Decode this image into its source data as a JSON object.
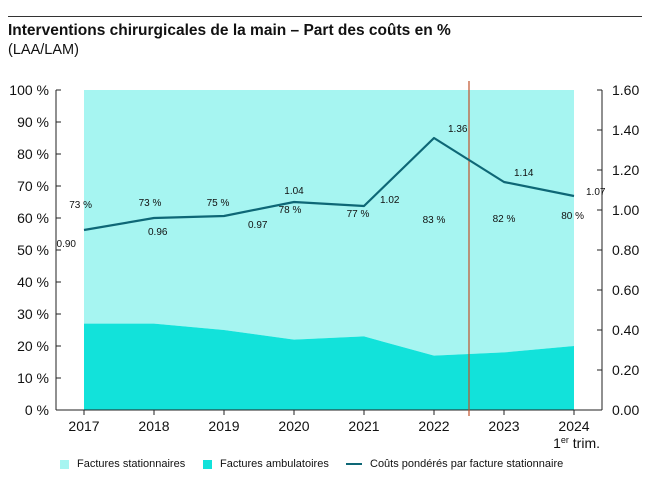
{
  "title": "Interventions chirurgicales de la main – Part des coûts en %",
  "subtitle": "(LAA/LAM)",
  "colors": {
    "stationnaire": "#a6f5f1",
    "ambulatoire": "#12e2da",
    "line": "#0e6776",
    "divider": "#c0522b"
  },
  "chart_data": {
    "type": "area",
    "x": [
      "2017",
      "2018",
      "2019",
      "2020",
      "2021",
      "2022",
      "2023",
      "2024"
    ],
    "x_note": "1er trim.",
    "ylim_left": [
      0,
      100
    ],
    "ylim_right": [
      0,
      1.6
    ],
    "yticks_left": [
      "0 %",
      "10 %",
      "20 %",
      "30 %",
      "40 %",
      "50 %",
      "60 %",
      "70 %",
      "80 %",
      "90 %",
      "100 %"
    ],
    "yticks_right": [
      "0.00",
      "0.20",
      "0.40",
      "0.60",
      "0.80",
      "1.00",
      "1.20",
      "1.40",
      "1.60"
    ],
    "series": [
      {
        "name": "Factures stationnaires",
        "axis": "left",
        "values": [
          73,
          73,
          75,
          78,
          77,
          83,
          82,
          80
        ],
        "labels": [
          "73 %",
          "73 %",
          "75 %",
          "78 %",
          "77 %",
          "83 %",
          "82 %",
          "80 %"
        ]
      },
      {
        "name": "Factures ambulatoires",
        "axis": "left",
        "values": [
          27,
          27,
          25,
          22,
          23,
          17,
          18,
          20
        ]
      },
      {
        "name": "Coûts pondérés par facture stationnaire",
        "axis": "right",
        "values": [
          0.9,
          0.96,
          0.97,
          1.04,
          1.02,
          1.36,
          1.14,
          1.07
        ],
        "labels": [
          "0.90",
          "0.96",
          "0.97",
          "1.04",
          "1.02",
          "1.36",
          "1.14",
          "1.07"
        ]
      }
    ],
    "divider_between": [
      "2022",
      "2023"
    ]
  }
}
